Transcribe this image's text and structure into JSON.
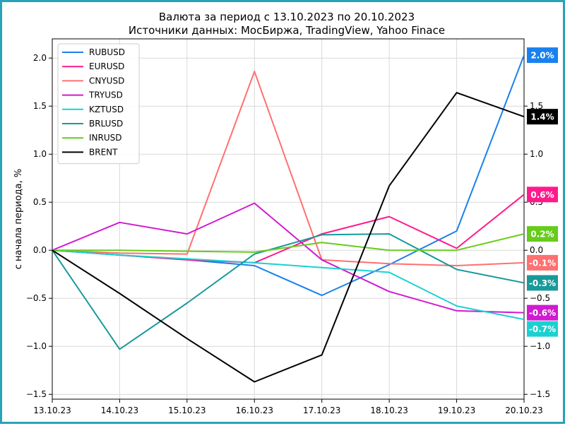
{
  "chart_data": {
    "type": "line",
    "title": "Валюта за период с 13.10.2023 по 20.10.2023",
    "subtitle": "Источники данных: МосБиржа, TradingView, Yahoo Finace",
    "ylabel": "с начала периода, %",
    "xlabel": "",
    "categories": [
      "13.10.23",
      "14.10.23",
      "15.10.23",
      "16.10.23",
      "17.10.23",
      "18.10.23",
      "19.10.23",
      "20.10.23"
    ],
    "ylim": [
      -1.55,
      2.2
    ],
    "y_ticks": [
      -1.5,
      -1.0,
      -0.5,
      0.0,
      0.5,
      1.0,
      1.5,
      2.0
    ],
    "y_tick_labels": [
      "−1.5",
      "−1.0",
      "−0.5",
      "0.0",
      "0.5",
      "1.0",
      "1.5",
      "2.0"
    ],
    "right_ticks": [
      -1.5,
      -1.0,
      -0.5,
      0.0,
      0.5,
      1.0,
      1.5
    ],
    "right_tick_labels": [
      "−1.5",
      "−1.0",
      "−0.5",
      "0.0",
      "0.5",
      "1.0",
      "1.5"
    ],
    "grid": true,
    "legend_position": "top-left",
    "series": [
      {
        "name": "RUBUSD",
        "color": "#1a80ee",
        "values": [
          0,
          -0.05,
          -0.1,
          -0.16,
          -0.47,
          -0.15,
          0.2,
          2.03
        ],
        "end_label": "2.0%"
      },
      {
        "name": "EURUSD",
        "color": "#ff1a8c",
        "values": [
          0,
          -0.05,
          -0.1,
          -0.13,
          0.17,
          0.35,
          0.02,
          0.58
        ],
        "end_label": "0.6%"
      },
      {
        "name": "CNYUSD",
        "color": "#ff7070",
        "values": [
          0,
          -0.03,
          -0.04,
          1.86,
          -0.1,
          -0.14,
          -0.16,
          -0.13
        ],
        "end_label": "-0.1%"
      },
      {
        "name": "TRYUSD",
        "color": "#d11ad1",
        "values": [
          0,
          0.29,
          0.17,
          0.49,
          -0.1,
          -0.43,
          -0.63,
          -0.65
        ],
        "end_label": "-0.6%"
      },
      {
        "name": "KZTUSD",
        "color": "#1ad1d1",
        "values": [
          0,
          -0.05,
          -0.09,
          -0.13,
          -0.18,
          -0.23,
          -0.58,
          -0.72
        ],
        "end_label": "-0.7%"
      },
      {
        "name": "BRLUSD",
        "color": "#199999",
        "values": [
          0,
          -1.03,
          -0.55,
          -0.04,
          0.16,
          0.17,
          -0.2,
          -0.34
        ],
        "end_label": "-0.3%"
      },
      {
        "name": "INRUSD",
        "color": "#66cc1a",
        "values": [
          0,
          0.0,
          -0.01,
          -0.02,
          0.08,
          0.0,
          0.0,
          0.17
        ],
        "end_label": "0.2%"
      },
      {
        "name": "BRENT",
        "color": "#000000",
        "values": [
          0,
          -0.45,
          -0.92,
          -1.37,
          -1.09,
          0.67,
          1.64,
          1.39
        ],
        "end_label": "1.4%"
      }
    ]
  }
}
